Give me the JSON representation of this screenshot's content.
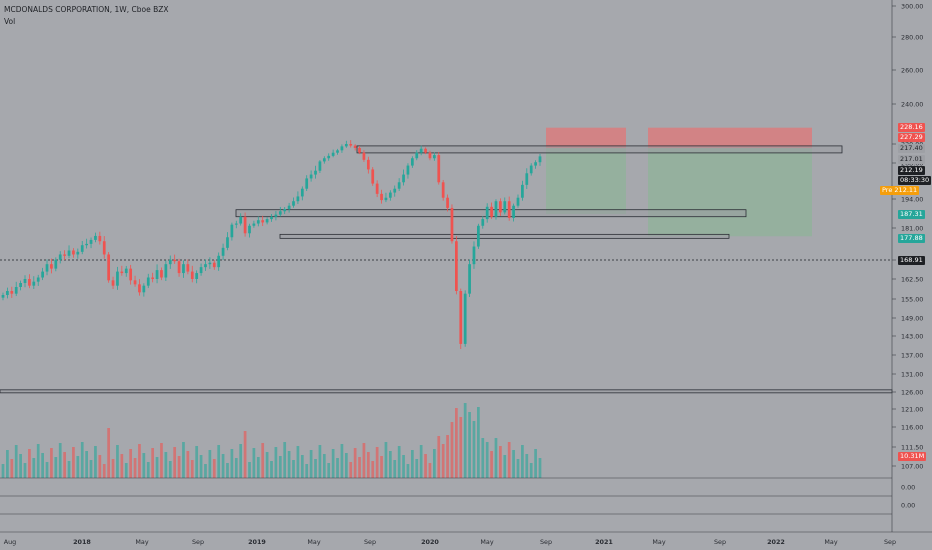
{
  "header": {
    "title": "MCDONALDS CORPORATION, 1W, Cboe BZX",
    "volume_label": "Vol"
  },
  "colors": {
    "bg": "#a6a8ad",
    "up": "#26a69a",
    "down": "#ef5350",
    "axis_text": "#2a2d33",
    "grid_line": "#3a3d44"
  },
  "price_axis": {
    "ticks": [
      "300.00",
      "280.00",
      "260.00",
      "240.00",
      "220.00",
      "208.00",
      "194.00",
      "181.00",
      "168.91",
      "162.50",
      "155.00",
      "149.00",
      "143.00",
      "137.00",
      "131.00",
      "126.00",
      "121.00",
      "116.00",
      "111.50",
      "107.00"
    ],
    "labels": {
      "p1": "228.16",
      "p2": "227.29",
      "p3": "217.40",
      "p4": "217.01",
      "p5": "212.19",
      "timer": "08:33:30",
      "pre_label": "Pre",
      "pre_value": "212.11",
      "p6": "187.31",
      "p7": "177.88",
      "p8": "168.91",
      "vol": "10.31M"
    }
  },
  "panels": {
    "zero_a": "0.00",
    "zero_b": "0.00"
  },
  "time_axis": [
    "Aug",
    "2018",
    "May",
    "Sep",
    "2019",
    "May",
    "Sep",
    "2020",
    "May",
    "Sep",
    "2021",
    "May",
    "Sep",
    "2022",
    "May",
    "Sep"
  ],
  "chart_data": {
    "type": "candlestick",
    "symbol": "MCDONALDS CORPORATION",
    "interval": "1W",
    "exchange": "Cboe BZX",
    "x_range": [
      "2017-08",
      "2022-09"
    ],
    "y_range": [
      107,
      300
    ],
    "close": [
      156.5,
      158.0,
      157.0,
      159.5,
      161.0,
      162.5,
      160.0,
      161.5,
      163.0,
      165.0,
      167.5,
      166.0,
      169.0,
      171.0,
      170.5,
      172.5,
      171.0,
      172.0,
      174.5,
      175.0,
      176.5,
      178.0,
      176.0,
      171.0,
      162.0,
      160.0,
      165.0,
      164.5,
      166.0,
      162.0,
      160.5,
      157.5,
      160.0,
      163.0,
      162.5,
      165.5,
      163.0,
      167.5,
      169.0,
      168.5,
      164.5,
      167.5,
      165.0,
      162.5,
      164.5,
      166.5,
      167.5,
      168.0,
      166.5,
      170.5,
      173.5,
      177.5,
      182.5,
      183.0,
      186.0,
      179.0,
      182.0,
      183.0,
      184.5,
      183.5,
      185.0,
      186.0,
      187.0,
      188.5,
      189.5,
      191.0,
      193.0,
      195.0,
      198.0,
      202.0,
      203.5,
      205.0,
      209.0,
      211.0,
      212.5,
      214.5,
      216.0,
      218.5,
      220.0,
      219.0,
      217.5,
      214.5,
      210.0,
      205.5,
      200.0,
      196.0,
      193.5,
      194.5,
      196.5,
      198.0,
      200.5,
      203.5,
      207.0,
      211.0,
      214.5,
      217.0,
      214.5,
      211.0,
      213.0,
      200.5,
      194.5,
      190.0,
      176.0,
      158.0,
      140.5,
      157.0,
      167.5,
      174.0,
      182.0,
      185.0,
      190.5,
      186.0,
      193.0,
      188.0,
      193.0,
      185.5,
      191.0,
      194.5,
      199.5,
      204.0,
      207.0,
      208.5,
      212.19
    ],
    "reference_prices": [
      {
        "label": "sell_target_top",
        "value": 228.16
      },
      {
        "label": "zone_top",
        "value": 227.29
      },
      {
        "label": "resistance",
        "value": 217.4
      },
      {
        "label": "close",
        "value": 217.01
      },
      {
        "label": "last",
        "value": 212.19
      },
      {
        "label": "pre_market",
        "value": 212.11
      },
      {
        "label": "support_1",
        "value": 187.31
      },
      {
        "label": "support_2",
        "value": 177.88
      },
      {
        "label": "dotted_level",
        "value": 168.91
      }
    ],
    "volume_last": "10.31M"
  }
}
